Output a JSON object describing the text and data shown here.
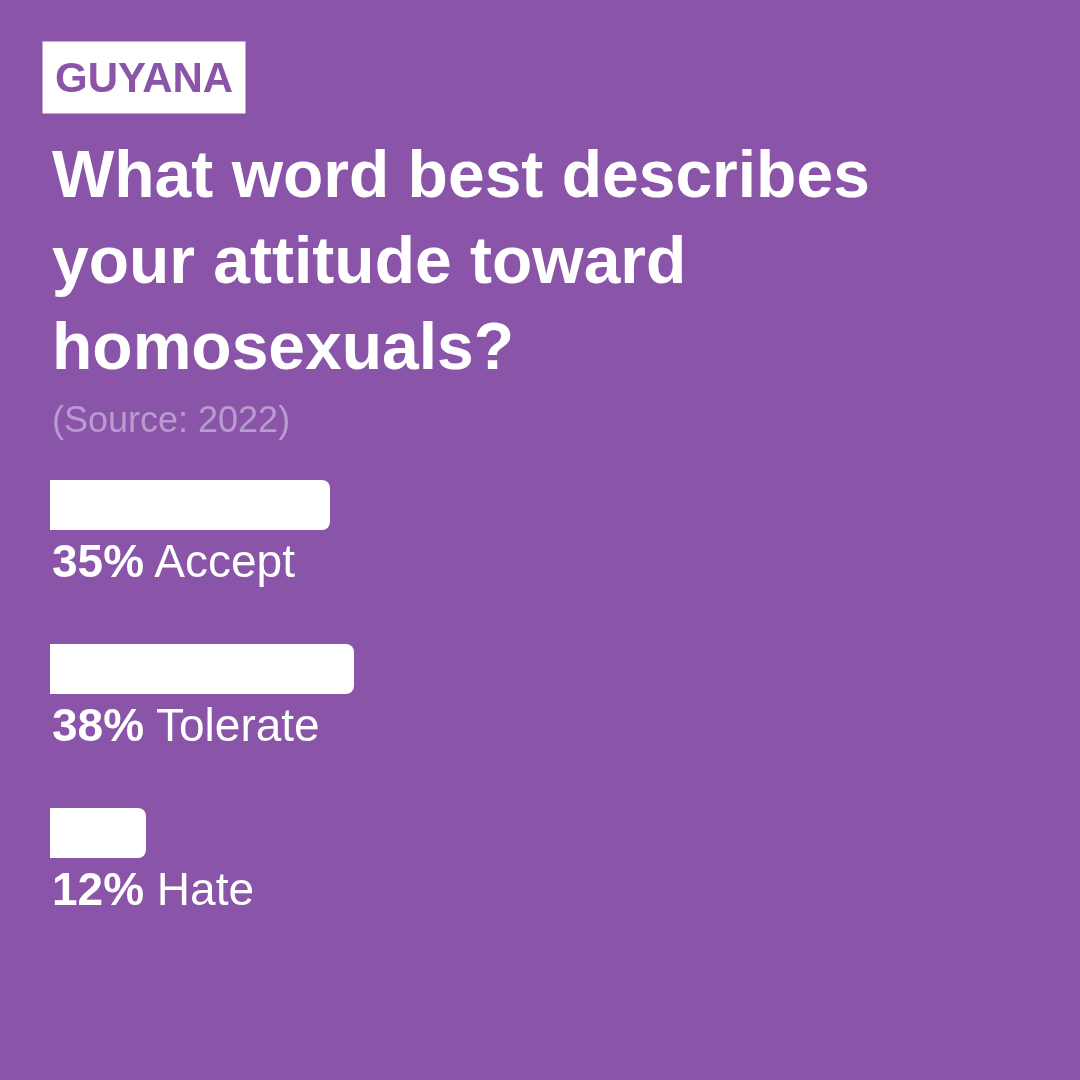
{
  "chart_data": {
    "type": "bar",
    "orientation": "horizontal",
    "title": "What word best describes your attitude toward homosexuals?",
    "subtitle": "GUYANA",
    "annotations": [
      "(Source: 2022)"
    ],
    "categories": [
      "Accept",
      "Tolerate",
      "Hate"
    ],
    "values": [
      35,
      38,
      12
    ],
    "value_labels": [
      "35%",
      "38%",
      "12%"
    ],
    "color": "#ffffff"
  }
}
